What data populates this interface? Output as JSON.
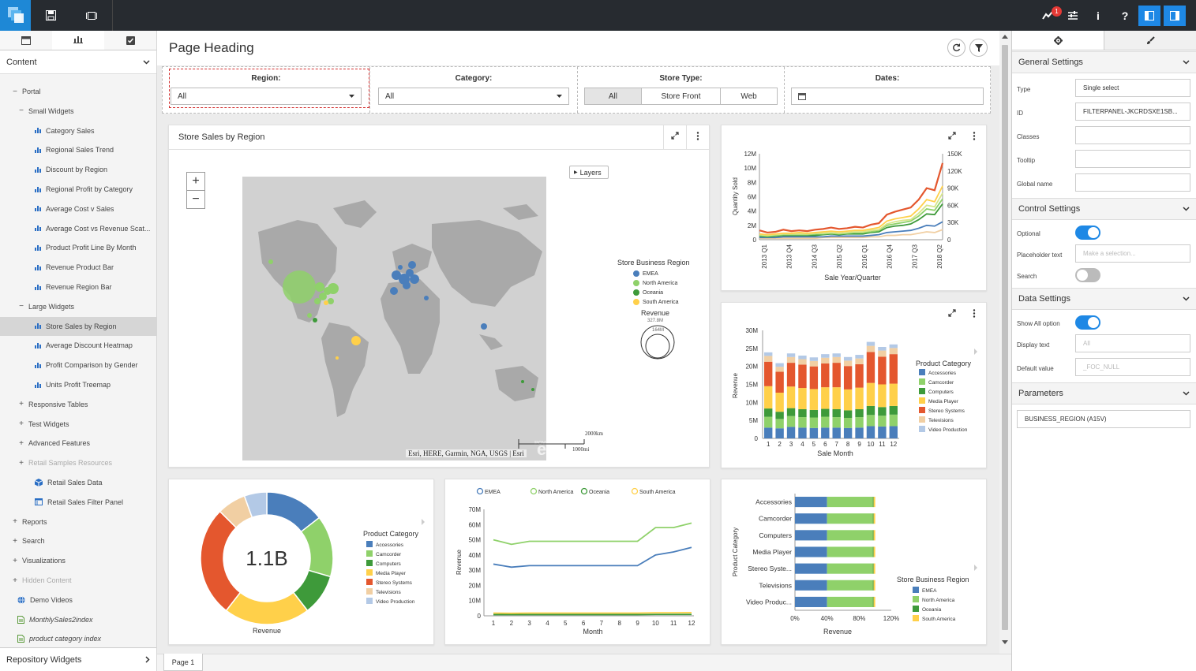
{
  "topbar": {
    "notification_count": "1"
  },
  "left_panel": {
    "dropdown_label": "Content",
    "bottom_label": "Repository Widgets",
    "tree": [
      {
        "label": "Portal",
        "level": 0,
        "icon": "minus"
      },
      {
        "label": "Small Widgets",
        "level": 1,
        "icon": "minus"
      },
      {
        "label": "Category Sales",
        "level": 2,
        "icon": "bar"
      },
      {
        "label": "Regional Sales Trend",
        "level": 2,
        "icon": "bar"
      },
      {
        "label": "Discount by Region",
        "level": 2,
        "icon": "bar"
      },
      {
        "label": "Regional Profit by Category",
        "level": 2,
        "icon": "bar"
      },
      {
        "label": "Average Cost v Sales",
        "level": 2,
        "icon": "bar"
      },
      {
        "label": "Average Cost vs Revenue Scat...",
        "level": 2,
        "icon": "bar"
      },
      {
        "label": "Product Profit Line By Month",
        "level": 2,
        "icon": "bar"
      },
      {
        "label": "Revenue Product Bar",
        "level": 2,
        "icon": "bar"
      },
      {
        "label": "Revenue Region Bar",
        "level": 2,
        "icon": "bar"
      },
      {
        "label": "Large Widgets",
        "level": 1,
        "icon": "minus"
      },
      {
        "label": "Store Sales by Region",
        "level": 2,
        "icon": "bar",
        "selected": true
      },
      {
        "label": "Average Discount Heatmap",
        "level": 2,
        "icon": "bar"
      },
      {
        "label": "Profit Comparison by Gender",
        "level": 2,
        "icon": "bar"
      },
      {
        "label": "Units Profit Treemap",
        "level": 2,
        "icon": "bar"
      },
      {
        "label": "Responsive Tables",
        "level": 1,
        "icon": "plus"
      },
      {
        "label": "Test Widgets",
        "level": 1,
        "icon": "plus"
      },
      {
        "label": "Advanced Features",
        "level": 1,
        "icon": "plus"
      },
      {
        "label": "Retail Samples Resources",
        "level": 1,
        "icon": "plus",
        "disabled": true
      },
      {
        "label": "Retail Sales Data",
        "level": 2,
        "icon": "cube"
      },
      {
        "label": "Retail Sales Filter Panel",
        "level": 2,
        "icon": "panel"
      },
      {
        "label": "Reports",
        "level": 0,
        "icon": "plus"
      },
      {
        "label": "Search",
        "level": 0,
        "icon": "plus"
      },
      {
        "label": "Visualizations",
        "level": 0,
        "icon": "plus"
      },
      {
        "label": "Hidden Content",
        "level": 0,
        "icon": "plus",
        "disabled": true
      },
      {
        "label": "Demo Videos",
        "level": 1,
        "icon": "globe"
      },
      {
        "label": "MonthlySales2index",
        "level": 1,
        "icon": "doc",
        "italic": true
      },
      {
        "label": "product category index",
        "level": 1,
        "icon": "doc",
        "italic": true
      }
    ]
  },
  "main": {
    "page_heading": "Page Heading",
    "page_tab": "Page 1",
    "filters": {
      "region": {
        "label": "Region:",
        "value": "All"
      },
      "category": {
        "label": "Category:",
        "value": "All"
      },
      "store_type": {
        "label": "Store Type:",
        "options": [
          "All",
          "Store Front",
          "Web"
        ]
      },
      "dates": {
        "label": "Dates:"
      }
    },
    "map_card": {
      "title": "Store Sales by Region",
      "layers_label": "Layers",
      "legend_title": "Store Business Region",
      "legend_items": [
        "EMEA",
        "North America",
        "Oceania",
        "South America"
      ],
      "size_title": "Revenue",
      "size_max": "327.8M",
      "size_mid": "164M",
      "attribution": "Esri, HERE, Garmin, NGA, USGS | Esri",
      "scale_km": "2000km",
      "scale_mi": "1000mi",
      "esri_logo": "esri",
      "powered_by": "POWERED BY"
    }
  },
  "colors": {
    "emea": "#4a7ebb",
    "north_america": "#8fd16a",
    "oceania": "#3e9a3a",
    "south_america": "#ffd04a",
    "accessories": "#4a7ebb",
    "camcorder": "#8fd16a",
    "computers": "#3e9a3a",
    "media_player": "#ffd04a",
    "stereo_systems": "#e4572e",
    "televisions": "#f1cfa3",
    "video_production": "#b3c9e6",
    "accent": "#1e88e5"
  },
  "charts": {
    "line_qty": {
      "ylabel": "Quantity Sold",
      "xlabel": "Sale Year/Quarter",
      "left_ticks": [
        "12M",
        "10M",
        "8M",
        "6M",
        "4M",
        "2M",
        "0"
      ],
      "right_ticks": [
        "150K",
        "120K",
        "90K",
        "60K",
        "30K",
        "0"
      ],
      "x_ticks": [
        "2013 Q1",
        "2013 Q4",
        "2014 Q3",
        "2015 Q2",
        "2016 Q1",
        "2016 Q4",
        "2017 Q3",
        "2018 Q2"
      ]
    },
    "stacked_bar": {
      "ylabel": "Revenue",
      "xlabel": "Sale Month",
      "y_ticks": [
        "30M",
        "25M",
        "20M",
        "15M",
        "10M",
        "5M",
        "0"
      ],
      "x_ticks": [
        "1",
        "2",
        "3",
        "4",
        "5",
        "6",
        "7",
        "8",
        "9",
        "10",
        "11",
        "12"
      ],
      "legend_title": "Product Category",
      "legend_items": [
        "Accessories",
        "Camcorder",
        "Computers",
        "Media Player",
        "Stereo Systems",
        "Televisions",
        "Video Production"
      ]
    },
    "donut": {
      "center": "1.1B",
      "label": "Revenue",
      "legend_title": "Product Category",
      "legend_items": [
        "Accessories",
        "Camcorder",
        "Computers",
        "Media Player",
        "Stereo Systems",
        "Televisions",
        "Video Production"
      ]
    },
    "region_line": {
      "ylabel": "Revenue",
      "xlabel": "Month",
      "legend": [
        "EMEA",
        "North America",
        "Oceania",
        "South America"
      ],
      "y_ticks": [
        "70M",
        "60M",
        "50M",
        "40M",
        "30M",
        "20M",
        "10M",
        "0"
      ],
      "x_ticks": [
        "1",
        "2",
        "3",
        "4",
        "5",
        "6",
        "7",
        "8",
        "9",
        "10",
        "11",
        "12"
      ]
    },
    "hbar": {
      "ylabel": "Product Category",
      "xlabel": "Revenue",
      "categories": [
        "Accessories",
        "Camcorder",
        "Computers",
        "Media Player",
        "Stereo Syste...",
        "Televisions",
        "Video Produc..."
      ],
      "x_ticks": [
        "0%",
        "40%",
        "80%",
        "120%"
      ],
      "legend_title": "Store Business Region",
      "legend_items": [
        "EMEA",
        "North America",
        "Oceania",
        "South America"
      ]
    }
  },
  "right_panel": {
    "general_settings": "General Settings",
    "type_label": "Type",
    "type_value": "Single select",
    "id_label": "ID",
    "id_value": "FILTERPANEL-JKCRDSXE1SB...",
    "classes_label": "Classes",
    "tooltip_label": "Tooltip",
    "global_name_label": "Global name",
    "control_settings": "Control Settings",
    "optional_label": "Optional",
    "placeholder_label": "Placeholder text",
    "placeholder_value": "Make a selection...",
    "search_label": "Search",
    "data_settings": "Data Settings",
    "show_all_label": "Show All option",
    "display_text_label": "Display text",
    "display_text_value": "All",
    "default_value_label": "Default value",
    "default_value_value": "_FOC_NULL",
    "parameters": "Parameters",
    "param_value": "BUSINESS_REGION (A15V)"
  },
  "chart_data": [
    {
      "type": "line",
      "title": "",
      "xlabel": "Sale Year/Quarter",
      "ylabel": "Quantity Sold",
      "x": [
        "2013 Q1",
        "2013 Q2",
        "2013 Q3",
        "2013 Q4",
        "2014 Q1",
        "2014 Q2",
        "2014 Q3",
        "2014 Q4",
        "2015 Q1",
        "2015 Q2",
        "2015 Q3",
        "2015 Q4",
        "2016 Q1",
        "2016 Q2",
        "2016 Q3",
        "2016 Q4",
        "2017 Q1",
        "2017 Q2",
        "2017 Q3",
        "2017 Q4",
        "2018 Q1",
        "2018 Q2",
        "2018 Q3",
        "2018 Q4"
      ],
      "series": [
        {
          "values": [
            1.3,
            1.0,
            1.1,
            1.4,
            1.2,
            1.3,
            1.2,
            1.4,
            1.5,
            1.7,
            1.5,
            1.6,
            1.8,
            1.7,
            2.1,
            2.3,
            3.5,
            3.9,
            4.2,
            4.5,
            5.6,
            7.2,
            6.9,
            10.7
          ]
        },
        {
          "values": [
            0.8,
            0.7,
            0.8,
            0.9,
            0.9,
            1.0,
            0.9,
            1.0,
            1.1,
            1.2,
            1.1,
            1.2,
            1.3,
            1.3,
            1.5,
            1.7,
            2.6,
            2.9,
            3.1,
            3.3,
            4.3,
            5.6,
            5.3,
            7.5
          ]
        },
        {
          "values": [
            0.7,
            0.6,
            0.7,
            0.8,
            0.8,
            0.8,
            0.8,
            0.9,
            0.9,
            1.0,
            0.9,
            1.0,
            1.1,
            1.1,
            1.3,
            1.4,
            2.2,
            2.5,
            2.7,
            2.8,
            3.7,
            4.8,
            4.6,
            6.5
          ]
        },
        {
          "values": [
            0.6,
            0.5,
            0.6,
            0.7,
            0.7,
            0.7,
            0.7,
            0.8,
            0.8,
            0.9,
            0.8,
            0.9,
            1.0,
            1.0,
            1.1,
            1.3,
            2.0,
            2.2,
            2.4,
            2.6,
            3.3,
            4.3,
            4.1,
            5.7
          ]
        },
        {
          "values": [
            0.5,
            0.4,
            0.5,
            0.6,
            0.6,
            0.6,
            0.6,
            0.6,
            0.7,
            0.8,
            0.7,
            0.8,
            0.8,
            0.8,
            1.0,
            1.1,
            1.7,
            1.9,
            2.0,
            2.2,
            2.8,
            3.6,
            3.5,
            5.0
          ]
        },
        {
          "values": [
            0.3,
            0.3,
            0.3,
            0.4,
            0.4,
            0.4,
            0.4,
            0.4,
            0.4,
            0.5,
            0.5,
            0.5,
            0.5,
            0.5,
            0.6,
            0.7,
            1.0,
            1.1,
            1.2,
            1.3,
            1.6,
            2.0,
            1.9,
            2.5
          ]
        },
        {
          "values": [
            0.2,
            0.2,
            0.2,
            0.2,
            0.2,
            0.2,
            0.2,
            0.2,
            0.3,
            0.3,
            0.3,
            0.3,
            0.3,
            0.3,
            0.4,
            0.4,
            0.6,
            0.6,
            0.7,
            0.7,
            0.9,
            1.1,
            1.0,
            1.4
          ]
        }
      ]
    },
    {
      "type": "bar",
      "stacked": true,
      "title": "",
      "xlabel": "Sale Month",
      "ylabel": "Revenue",
      "ylim": [
        0,
        30
      ],
      "categories": [
        "1",
        "2",
        "3",
        "4",
        "5",
        "6",
        "7",
        "8",
        "9",
        "10",
        "11",
        "12"
      ],
      "series": [
        {
          "name": "Accessories",
          "values": [
            3.0,
            2.8,
            3.2,
            3.0,
            2.9,
            3.0,
            3.0,
            2.9,
            3.0,
            3.4,
            3.3,
            3.4
          ]
        },
        {
          "name": "Camcorder",
          "values": [
            3.0,
            2.6,
            3.0,
            2.9,
            2.9,
            3.0,
            2.9,
            2.8,
            2.9,
            3.1,
            3.0,
            3.2
          ]
        },
        {
          "name": "Computers",
          "values": [
            2.3,
            2.0,
            2.2,
            2.2,
            2.1,
            2.2,
            2.2,
            2.1,
            2.2,
            2.5,
            2.4,
            2.4
          ]
        },
        {
          "name": "Media Player",
          "values": [
            6.2,
            5.3,
            6.0,
            5.9,
            5.8,
            6.0,
            6.1,
            5.8,
            6.0,
            6.4,
            6.3,
            6.2
          ]
        },
        {
          "name": "Stereo Systems",
          "values": [
            6.8,
            5.8,
            6.6,
            6.5,
            6.3,
            6.6,
            6.8,
            6.5,
            6.5,
            8.6,
            7.7,
            8.2
          ]
        },
        {
          "name": "Televisions",
          "values": [
            1.6,
            1.4,
            1.6,
            1.5,
            1.5,
            1.6,
            1.6,
            1.5,
            1.6,
            1.7,
            1.7,
            1.7
          ]
        },
        {
          "name": "Video Production",
          "values": [
            1.0,
            1.0,
            1.0,
            1.0,
            1.0,
            1.0,
            1.0,
            1.0,
            1.0,
            1.1,
            1.0,
            1.0
          ]
        }
      ]
    },
    {
      "type": "pie",
      "donut": true,
      "center_label": "1.1B",
      "label": "Revenue",
      "categories": [
        "Accessories",
        "Camcorder",
        "Computers",
        "Media Player",
        "Stereo Systems",
        "Televisions",
        "Video Production"
      ],
      "values": [
        14.5,
        15.0,
        10.0,
        21.0,
        27.0,
        7.0,
        5.5
      ]
    },
    {
      "type": "line",
      "title": "",
      "xlabel": "Month",
      "ylabel": "Revenue",
      "ylim": [
        0,
        70
      ],
      "x": [
        "1",
        "2",
        "3",
        "4",
        "5",
        "6",
        "7",
        "8",
        "9",
        "10",
        "11",
        "12"
      ],
      "series": [
        {
          "name": "EMEA",
          "values": [
            34,
            32,
            33,
            33,
            33,
            33,
            33,
            33,
            33,
            40,
            42,
            45
          ]
        },
        {
          "name": "North America",
          "values": [
            50,
            47,
            49,
            49,
            49,
            49,
            49,
            49,
            49,
            58,
            58,
            61
          ]
        },
        {
          "name": "Oceania",
          "values": [
            0.8,
            0.8,
            0.8,
            0.8,
            0.8,
            0.8,
            0.8,
            0.8,
            0.8,
            0.9,
            0.9,
            0.9
          ]
        },
        {
          "name": "South America",
          "values": [
            1.8,
            1.7,
            1.8,
            1.8,
            1.8,
            1.8,
            1.8,
            1.8,
            1.8,
            2.0,
            2.0,
            2.1
          ]
        }
      ]
    },
    {
      "type": "bar",
      "orientation": "horizontal",
      "stacked": true,
      "percent": true,
      "title": "",
      "xlabel": "Revenue",
      "ylabel": "Product Category",
      "xlim": [
        0,
        120
      ],
      "categories": [
        "Accessories",
        "Camcorder",
        "Computers",
        "Media Player",
        "Stereo Syste...",
        "Televisions",
        "Video Produc..."
      ],
      "series": [
        {
          "name": "EMEA",
          "values": [
            40,
            40,
            40,
            40,
            40,
            40,
            40
          ]
        },
        {
          "name": "North America",
          "values": [
            57,
            57,
            57,
            57,
            57,
            57,
            57
          ]
        },
        {
          "name": "Oceania",
          "values": [
            1,
            1,
            1,
            1,
            1,
            1,
            1
          ]
        },
        {
          "name": "South America",
          "values": [
            2,
            2,
            2,
            2,
            2,
            2,
            2
          ]
        }
      ]
    }
  ]
}
